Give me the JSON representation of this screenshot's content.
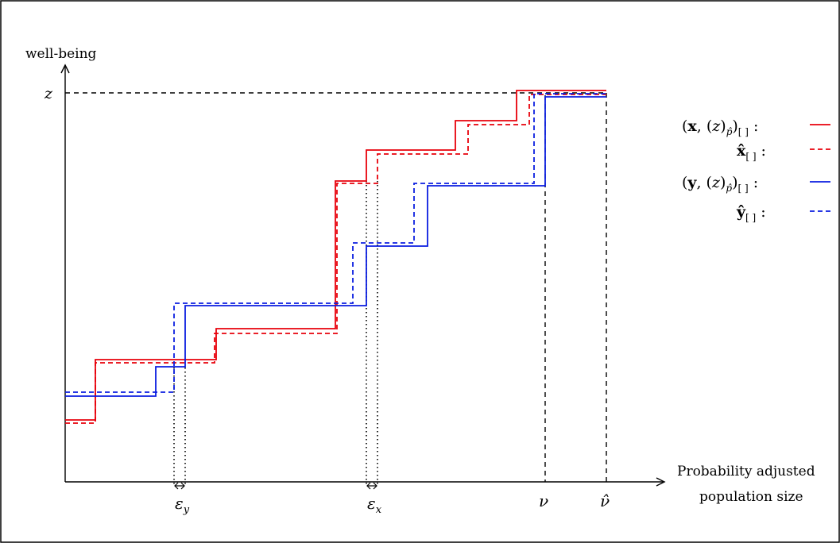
{
  "axes": {
    "y_label": "well-being",
    "x_label_line1": "Probability adjusted",
    "x_label_line2": "population size"
  },
  "markers": {
    "z": "z",
    "nu": "ν",
    "nu_hat": "ν̂",
    "eps_y": "ε",
    "eps_y_sub": "y",
    "eps_x": "ε",
    "eps_x_sub": "x"
  },
  "legend": [
    {
      "id": "x",
      "color": "#e8000b",
      "dash": false
    },
    {
      "id": "xhat",
      "color": "#e8000b",
      "dash": true
    },
    {
      "id": "y",
      "color": "#0a1de0",
      "dash": false
    },
    {
      "id": "yhat",
      "color": "#0a1de0",
      "dash": true
    }
  ],
  "colors": {
    "red": "#e8000b",
    "blue": "#0a1de0",
    "axis": "#000000"
  }
}
